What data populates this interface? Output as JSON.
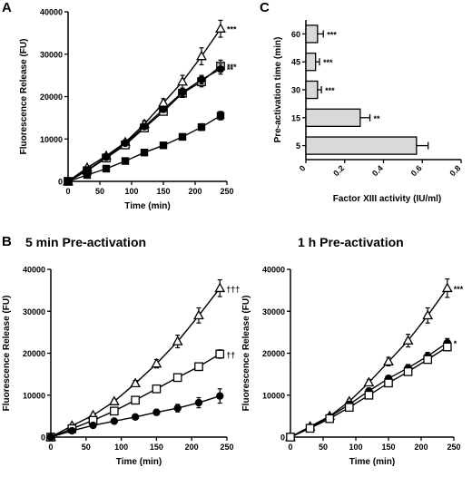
{
  "panels": {
    "a": {
      "letter": "A"
    },
    "b": {
      "letter": "B",
      "title_left": "5 min Pre-activation",
      "title_right": "1 h Pre-activation"
    },
    "c": {
      "letter": "C"
    }
  },
  "chart_data": [
    {
      "id": "A",
      "type": "line",
      "xlabel": "Time (min)",
      "ylabel": "Fluorescence Release (FU)",
      "xlim": [
        0,
        250
      ],
      "ylim": [
        0,
        40000
      ],
      "xticks": [
        0,
        50,
        100,
        150,
        200,
        250
      ],
      "yticks": [
        0,
        10000,
        20000,
        30000,
        40000
      ],
      "x": [
        0,
        30,
        60,
        90,
        120,
        150,
        180,
        210,
        240
      ],
      "series": [
        {
          "marker": "open-triangle",
          "y": [
            0,
            3200,
            6000,
            9200,
            13500,
            18500,
            23500,
            29500,
            36000
          ],
          "err": [
            0,
            400,
            500,
            600,
            800,
            1000,
            1500,
            2000,
            2000
          ],
          "annotation": "***"
        },
        {
          "marker": "open-square",
          "y": [
            0,
            2500,
            5500,
            8600,
            12600,
            16500,
            20800,
            23500,
            27200
          ],
          "err": [
            0,
            300,
            400,
            500,
            600,
            800,
            1000,
            1200,
            1400
          ],
          "annotation": "***"
        },
        {
          "marker": "filled-circle",
          "y": [
            0,
            2700,
            5700,
            9000,
            12900,
            17000,
            21000,
            24000,
            26500
          ],
          "err": [
            0,
            300,
            400,
            500,
            600,
            700,
            900,
            1000,
            1200
          ],
          "annotation": "**"
        },
        {
          "marker": "filled-square",
          "y": [
            0,
            1500,
            3000,
            4800,
            6800,
            8500,
            10500,
            12800,
            15500
          ],
          "err": [
            0,
            200,
            250,
            300,
            400,
            500,
            600,
            800,
            1000
          ],
          "annotation": ""
        }
      ]
    },
    {
      "id": "B-left",
      "type": "line",
      "xlabel": "Time (min)",
      "ylabel": "Fluorescence Release (FU)",
      "xlim": [
        0,
        250
      ],
      "ylim": [
        0,
        40000
      ],
      "xticks": [
        0,
        50,
        100,
        150,
        200,
        250
      ],
      "yticks": [
        0,
        10000,
        20000,
        30000,
        40000
      ],
      "x": [
        0,
        30,
        60,
        90,
        120,
        150,
        180,
        210,
        240
      ],
      "series": [
        {
          "marker": "open-triangle",
          "y": [
            0,
            2700,
            5200,
            8500,
            12800,
            17500,
            22800,
            29000,
            35500
          ],
          "err": [
            0,
            300,
            400,
            500,
            700,
            1000,
            1500,
            1800,
            2000
          ],
          "annotation": "†††"
        },
        {
          "marker": "open-square",
          "y": [
            0,
            2000,
            4000,
            6200,
            8800,
            11500,
            14200,
            16800,
            19800
          ],
          "err": [
            0,
            200,
            300,
            400,
            500,
            600,
            700,
            900,
            1000
          ],
          "annotation": "††"
        },
        {
          "marker": "filled-circle",
          "y": [
            0,
            1500,
            2800,
            3800,
            4800,
            5900,
            6900,
            8200,
            9800
          ],
          "err": [
            0,
            200,
            300,
            400,
            500,
            700,
            900,
            1200,
            1700
          ],
          "annotation": ""
        }
      ]
    },
    {
      "id": "B-right",
      "type": "line",
      "xlabel": "Time (min)",
      "ylabel": "Fluorescence Release (FU)",
      "xlim": [
        0,
        250
      ],
      "ylim": [
        0,
        40000
      ],
      "xticks": [
        0,
        50,
        100,
        150,
        200,
        250
      ],
      "yticks": [
        0,
        10000,
        20000,
        30000,
        40000
      ],
      "x": [
        0,
        30,
        60,
        90,
        120,
        150,
        180,
        210,
        240
      ],
      "series": [
        {
          "marker": "open-triangle",
          "y": [
            0,
            2500,
            5000,
            8500,
            13000,
            18000,
            23000,
            29000,
            35500
          ],
          "err": [
            0,
            300,
            400,
            500,
            700,
            1000,
            1500,
            1800,
            2200
          ],
          "annotation": "***"
        },
        {
          "marker": "filled-circle",
          "y": [
            0,
            2300,
            4800,
            7800,
            11000,
            14000,
            16500,
            19300,
            22500
          ],
          "err": [
            0,
            200,
            300,
            400,
            500,
            600,
            800,
            900,
            1000
          ],
          "annotation": "*"
        },
        {
          "marker": "open-square",
          "y": [
            0,
            2100,
            4400,
            7100,
            10000,
            12900,
            15600,
            18500,
            21500
          ],
          "err": [
            0,
            200,
            300,
            400,
            500,
            600,
            700,
            800,
            900
          ],
          "annotation": ""
        }
      ]
    },
    {
      "id": "C",
      "type": "bar",
      "orientation": "horizontal",
      "xlabel": "Factor XIII activity (IU/ml)",
      "ylabel": "Pre-activation time (min)",
      "xlim": [
        0,
        0.8
      ],
      "xticks": [
        "0",
        "0.2",
        "0.4",
        "0.6",
        "0.8"
      ],
      "categories": [
        "60",
        "45",
        "30",
        "15",
        "5"
      ],
      "values": [
        0.06,
        0.05,
        0.06,
        0.28,
        0.57
      ],
      "err": [
        0.03,
        0.02,
        0.02,
        0.05,
        0.06
      ],
      "annotations": [
        "***",
        "***",
        "***",
        "**",
        ""
      ],
      "bar_color": "#d9d9d9"
    }
  ]
}
